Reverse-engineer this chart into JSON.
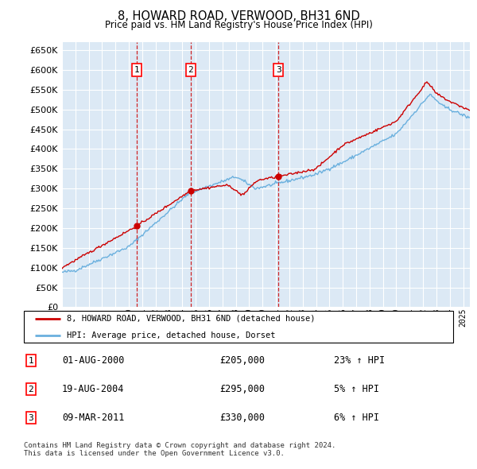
{
  "title": "8, HOWARD ROAD, VERWOOD, BH31 6ND",
  "subtitle": "Price paid vs. HM Land Registry's House Price Index (HPI)",
  "ylim": [
    0,
    670000
  ],
  "yticks": [
    0,
    50000,
    100000,
    150000,
    200000,
    250000,
    300000,
    350000,
    400000,
    450000,
    500000,
    550000,
    600000,
    650000
  ],
  "background_color": "#ffffff",
  "plot_bg_color": "#dce9f5",
  "grid_color": "#ffffff",
  "hpi_color": "#6ab0de",
  "price_color": "#cc0000",
  "vline_color": "#cc0000",
  "sale_year_floats": [
    2000.58,
    2004.63,
    2011.18
  ],
  "sale_prices": [
    205000,
    295000,
    330000
  ],
  "sale_labels": [
    "1",
    "2",
    "3"
  ],
  "legend_entries": [
    "8, HOWARD ROAD, VERWOOD, BH31 6ND (detached house)",
    "HPI: Average price, detached house, Dorset"
  ],
  "table_rows": [
    [
      "1",
      "01-AUG-2000",
      "£205,000",
      "23% ↑ HPI"
    ],
    [
      "2",
      "19-AUG-2004",
      "£295,000",
      "5% ↑ HPI"
    ],
    [
      "3",
      "09-MAR-2011",
      "£330,000",
      "6% ↑ HPI"
    ]
  ],
  "footnote": "Contains HM Land Registry data © Crown copyright and database right 2024.\nThis data is licensed under the Open Government Licence v3.0.",
  "xstart_year": 1995,
  "xend_year": 2025
}
